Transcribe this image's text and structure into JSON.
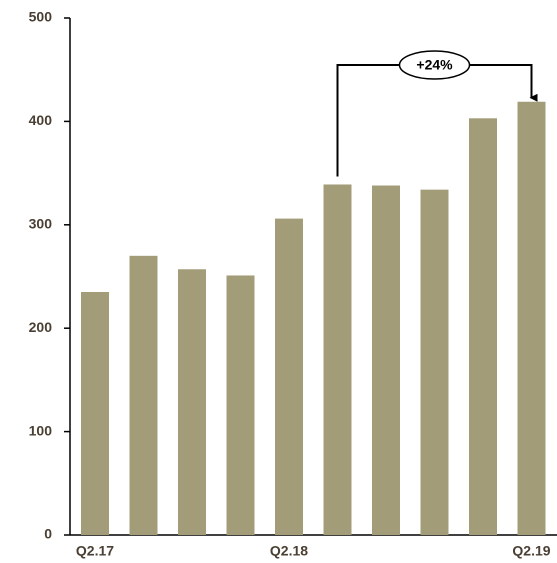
{
  "chart_data": {
    "type": "bar",
    "categories": [
      "Q2.17",
      null,
      null,
      null,
      "Q2.18",
      null,
      null,
      null,
      null,
      "Q2.19"
    ],
    "values": [
      235,
      270,
      257,
      251,
      306,
      339,
      338,
      334,
      403,
      419
    ],
    "color": "#a39c78",
    "ylim": [
      0,
      500
    ],
    "yticks": [
      0,
      100,
      200,
      300,
      400,
      500
    ],
    "grid": false,
    "annotation": "+24%"
  }
}
